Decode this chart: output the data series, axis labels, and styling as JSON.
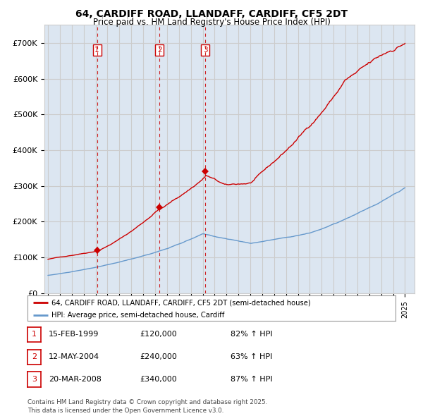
{
  "title": "64, CARDIFF ROAD, LLANDAFF, CARDIFF, CF5 2DT",
  "subtitle": "Price paid vs. HM Land Registry's House Price Index (HPI)",
  "red_label": "64, CARDIFF ROAD, LLANDAFF, CARDIFF, CF5 2DT (semi-detached house)",
  "blue_label": "HPI: Average price, semi-detached house, Cardiff",
  "footer": "Contains HM Land Registry data © Crown copyright and database right 2025.\nThis data is licensed under the Open Government Licence v3.0.",
  "transactions": [
    {
      "num": 1,
      "date": "15-FEB-1999",
      "price": "£120,000",
      "change": "82% ↑ HPI",
      "year": 1999.12,
      "price_val": 120000
    },
    {
      "num": 2,
      "date": "12-MAY-2004",
      "price": "£240,000",
      "change": "63% ↑ HPI",
      "year": 2004.37,
      "price_val": 240000
    },
    {
      "num": 3,
      "date": "20-MAR-2008",
      "price": "£340,000",
      "change": "87% ↑ HPI",
      "year": 2008.22,
      "price_val": 340000
    }
  ],
  "ylim": [
    0,
    750000
  ],
  "yticks": [
    0,
    100000,
    200000,
    300000,
    400000,
    500000,
    600000,
    700000
  ],
  "ytick_labels": [
    "£0",
    "£100K",
    "£200K",
    "£300K",
    "£400K",
    "£500K",
    "£600K",
    "£700K"
  ],
  "xlim_start": 1994.7,
  "xlim_end": 2025.8,
  "red_color": "#cc0000",
  "blue_color": "#6699cc",
  "grid_color": "#cccccc",
  "chart_bg": "#dce6f1",
  "background_color": "#ffffff",
  "dashed_color": "#cc0000",
  "seed": 42
}
